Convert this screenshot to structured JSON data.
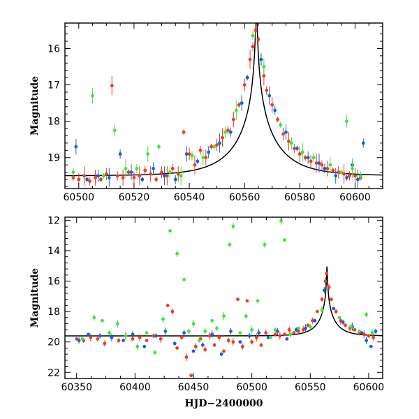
{
  "chart_data": [
    {
      "type": "scatter",
      "panel": "top",
      "ylabel": "Magnitude",
      "xlabel": "",
      "xlim": [
        60495,
        60610
      ],
      "ylim": [
        19.85,
        15.3
      ],
      "y_inverted": true,
      "xticks": [
        60500,
        60520,
        60540,
        60560,
        60580,
        60600
      ],
      "yticks": [
        16,
        17,
        18,
        19
      ],
      "grid": false,
      "model": {
        "t0": 60564.3,
        "u0": 0.015,
        "tE": 16.0,
        "baseline": 19.5
      },
      "series": [
        {
          "color": "#ee3b20",
          "points": [
            [
              60498,
              19.55
            ],
            [
              60500,
              19.6
            ],
            [
              60502,
              19.5
            ],
            [
              60504,
              19.65
            ],
            [
              60506,
              19.55
            ],
            [
              60508,
              19.6
            ],
            [
              60510,
              19.45
            ],
            [
              60512,
              17.02
            ],
            [
              60514,
              19.5
            ],
            [
              60516,
              19.55
            ],
            [
              60518,
              19.4
            ],
            [
              60520,
              19.55
            ],
            [
              60522,
              19.5
            ],
            [
              60524,
              19.35
            ],
            [
              60526,
              19.45
            ],
            [
              60528,
              19.6
            ],
            [
              60530,
              19.4
            ],
            [
              60532,
              19.5
            ],
            [
              60534,
              19.3
            ],
            [
              60536,
              19.45
            ],
            [
              60538,
              18.3
            ],
            [
              60540,
              18.9
            ],
            [
              60542,
              19.2
            ],
            [
              60544,
              18.8
            ],
            [
              60546,
              19.0
            ],
            [
              60548,
              18.7
            ],
            [
              60550,
              18.65
            ],
            [
              60552,
              18.45
            ],
            [
              60554,
              18.25
            ],
            [
              60556,
              17.95
            ],
            [
              60558,
              17.55
            ],
            [
              60560,
              17.0
            ],
            [
              60562,
              16.3
            ],
            [
              60563,
              15.95
            ],
            [
              60564,
              15.5
            ],
            [
              60565,
              15.75
            ],
            [
              60566,
              16.3
            ],
            [
              60567,
              16.75
            ],
            [
              60568,
              17.15
            ],
            [
              60570,
              17.55
            ],
            [
              60572,
              17.95
            ],
            [
              60574,
              18.35
            ],
            [
              60576,
              18.55
            ],
            [
              60578,
              18.75
            ],
            [
              60580,
              18.9
            ],
            [
              60582,
              19.0
            ],
            [
              60584,
              19.1
            ],
            [
              60586,
              19.15
            ],
            [
              60588,
              19.2
            ],
            [
              60590,
              19.3
            ],
            [
              60592,
              19.35
            ],
            [
              60594,
              19.4
            ],
            [
              60596,
              19.45
            ],
            [
              60598,
              19.5
            ],
            [
              60600,
              19.5
            ],
            [
              60602,
              19.55
            ]
          ]
        },
        {
          "color": "#1560d6",
          "points": [
            [
              60499,
              18.7
            ],
            [
              60503,
              19.6
            ],
            [
              60507,
              19.5
            ],
            [
              60511,
              19.55
            ],
            [
              60515,
              18.9
            ],
            [
              60519,
              19.4
            ],
            [
              60523,
              19.6
            ],
            [
              60527,
              19.3
            ],
            [
              60531,
              19.5
            ],
            [
              60535,
              19.6
            ],
            [
              60539,
              18.9
            ],
            [
              60543,
              19.1
            ],
            [
              60547,
              18.85
            ],
            [
              60551,
              18.6
            ],
            [
              60555,
              18.3
            ],
            [
              60559,
              17.5
            ],
            [
              60561,
              16.8
            ],
            [
              60566,
              16.3
            ],
            [
              60569,
              17.3
            ],
            [
              60571,
              17.7
            ],
            [
              60575,
              18.3
            ],
            [
              60579,
              18.75
            ],
            [
              60583,
              19.0
            ],
            [
              60587,
              19.15
            ],
            [
              60589,
              19.3
            ],
            [
              60593,
              19.5
            ],
            [
              60597,
              19.55
            ],
            [
              60599,
              19.2
            ],
            [
              60601,
              19.6
            ],
            [
              60603,
              18.6
            ]
          ]
        },
        {
          "color": "#3ee33a",
          "points": [
            [
              60498,
              19.4
            ],
            [
              60505,
              17.3
            ],
            [
              60509,
              19.5
            ],
            [
              60513,
              18.25
            ],
            [
              60517,
              19.3
            ],
            [
              60521,
              19.3
            ],
            [
              60525,
              18.9
            ],
            [
              60529,
              18.7
            ],
            [
              60533,
              19.4
            ],
            [
              60537,
              19.5
            ],
            [
              60541,
              18.95
            ],
            [
              60545,
              19.0
            ],
            [
              60549,
              18.7
            ],
            [
              60553,
              18.3
            ],
            [
              60557,
              17.7
            ],
            [
              60563,
              15.65
            ],
            [
              60567,
              16.5
            ],
            [
              60573,
              18.1
            ],
            [
              60577,
              18.6
            ],
            [
              60581,
              18.85
            ],
            [
              60585,
              19.0
            ],
            [
              60591,
              19.2
            ],
            [
              60595,
              19.4
            ],
            [
              60597,
              18.0
            ],
            [
              60599,
              19.3
            ],
            [
              60602,
              19.5
            ]
          ]
        }
      ]
    },
    {
      "type": "scatter",
      "panel": "bottom",
      "ylabel": "Magnitude",
      "xlabel": "HJD−2400000",
      "xlim": [
        60340,
        60612
      ],
      "ylim": [
        22.4,
        11.8
      ],
      "y_inverted": true,
      "xticks": [
        60350,
        60400,
        60450,
        60500,
        60550,
        60600
      ],
      "yticks": [
        12,
        14,
        16,
        18,
        20,
        22
      ],
      "grid": false,
      "model": {
        "t0": 60564.3,
        "u0": 0.015,
        "tE": 16.0,
        "baseline": 19.6
      },
      "series": [
        {
          "color": "#ee3b20",
          "points": [
            [
              60350,
              19.8
            ],
            [
              60356,
              19.9
            ],
            [
              60362,
              19.7
            ],
            [
              60368,
              19.8
            ],
            [
              60374,
              20.1
            ],
            [
              60380,
              19.7
            ],
            [
              60386,
              19.9
            ],
            [
              60392,
              19.6
            ],
            [
              60398,
              19.8
            ],
            [
              60404,
              19.7
            ],
            [
              60410,
              19.9
            ],
            [
              60416,
              19.6
            ],
            [
              60422,
              19.8
            ],
            [
              60428,
              17.6
            ],
            [
              60432,
              18.0
            ],
            [
              60436,
              20.4
            ],
            [
              60440,
              19.7
            ],
            [
              60444,
              21.0
            ],
            [
              60448,
              22.2
            ],
            [
              60452,
              20.3
            ],
            [
              60456,
              19.8
            ],
            [
              60460,
              20.5
            ],
            [
              60464,
              19.6
            ],
            [
              60468,
              20.2
            ],
            [
              60472,
              19.7
            ],
            [
              60476,
              20.6
            ],
            [
              60480,
              19.9
            ],
            [
              60484,
              20.0
            ],
            [
              60488,
              17.2
            ],
            [
              60492,
              20.3
            ],
            [
              60496,
              17.3
            ],
            [
              60500,
              20.0
            ],
            [
              60504,
              19.7
            ],
            [
              60508,
              20.2
            ],
            [
              60512,
              19.4
            ],
            [
              60516,
              19.7
            ],
            [
              60520,
              19.5
            ],
            [
              60524,
              19.6
            ],
            [
              60528,
              19.5
            ],
            [
              60532,
              19.2
            ],
            [
              60536,
              19.4
            ],
            [
              60540,
              19.3
            ],
            [
              60544,
              19.2
            ],
            [
              60548,
              18.9
            ],
            [
              60552,
              18.6
            ],
            [
              60556,
              18.0
            ],
            [
              60560,
              17.2
            ],
            [
              60563,
              16.0
            ],
            [
              60564,
              15.5
            ],
            [
              60566,
              16.4
            ],
            [
              60568,
              17.2
            ],
            [
              60572,
              18.0
            ],
            [
              60576,
              18.6
            ],
            [
              60580,
              18.9
            ],
            [
              60584,
              19.1
            ],
            [
              60588,
              19.2
            ],
            [
              60592,
              19.4
            ],
            [
              60596,
              19.5
            ],
            [
              60600,
              19.6
            ],
            [
              60604,
              19.7
            ]
          ]
        },
        {
          "color": "#1560d6",
          "points": [
            [
              60352,
              19.9
            ],
            [
              60360,
              19.5
            ],
            [
              60370,
              19.6
            ],
            [
              60380,
              19.7
            ],
            [
              60390,
              19.9
            ],
            [
              60398,
              19.5
            ],
            [
              60408,
              20.3
            ],
            [
              60418,
              19.6
            ],
            [
              60426,
              19.3
            ],
            [
              60434,
              20.1
            ],
            [
              60442,
              19.4
            ],
            [
              60450,
              20.6
            ],
            [
              60458,
              20.2
            ],
            [
              60466,
              19.5
            ],
            [
              60474,
              20.8
            ],
            [
              60482,
              19.3
            ],
            [
              60490,
              20.0
            ],
            [
              60498,
              19.6
            ],
            [
              60506,
              19.4
            ],
            [
              60514,
              19.7
            ],
            [
              60522,
              19.3
            ],
            [
              60530,
              19.8
            ],
            [
              60538,
              19.2
            ],
            [
              60546,
              19.1
            ],
            [
              60554,
              18.6
            ],
            [
              60562,
              16.6
            ],
            [
              60570,
              17.8
            ],
            [
              60578,
              18.7
            ],
            [
              60586,
              19.0
            ],
            [
              60594,
              19.4
            ],
            [
              60598,
              19.9
            ],
            [
              60602,
              20.3
            ],
            [
              60606,
              19.3
            ]
          ]
        },
        {
          "color": "#3ee33a",
          "points": [
            [
              60355,
              19.8
            ],
            [
              60365,
              18.4
            ],
            [
              60372,
              18.6
            ],
            [
              60378,
              19.4
            ],
            [
              60385,
              18.8
            ],
            [
              60392,
              19.6
            ],
            [
              60402,
              20.3
            ],
            [
              60410,
              19.4
            ],
            [
              60417,
              20.7
            ],
            [
              60424,
              18.5
            ],
            [
              60430,
              12.7
            ],
            [
              60436,
              14.2
            ],
            [
              60442,
              15.9
            ],
            [
              60446,
              19.3
            ],
            [
              60450,
              18.8
            ],
            [
              60455,
              19.9
            ],
            [
              60460,
              19.3
            ],
            [
              60466,
              18.6
            ],
            [
              60470,
              19.1
            ],
            [
              60476,
              18.3
            ],
            [
              60481,
              13.6
            ],
            [
              60484,
              12.4
            ],
            [
              60490,
              19.4
            ],
            [
              60495,
              18.3
            ],
            [
              60500,
              19.2
            ],
            [
              60505,
              17.3
            ],
            [
              60511,
              13.6
            ],
            [
              60516,
              19.7
            ],
            [
              60520,
              19.2
            ],
            [
              60525,
              12.05
            ],
            [
              60528,
              13.3
            ],
            [
              60533,
              19.5
            ],
            [
              60540,
              19.1
            ],
            [
              60550,
              19.0
            ],
            [
              60560,
              17.9
            ],
            [
              60575,
              18.4
            ],
            [
              60585,
              19.0
            ],
            [
              60592,
              19.3
            ],
            [
              60598,
              18.2
            ],
            [
              60603,
              19.4
            ]
          ]
        }
      ]
    }
  ]
}
